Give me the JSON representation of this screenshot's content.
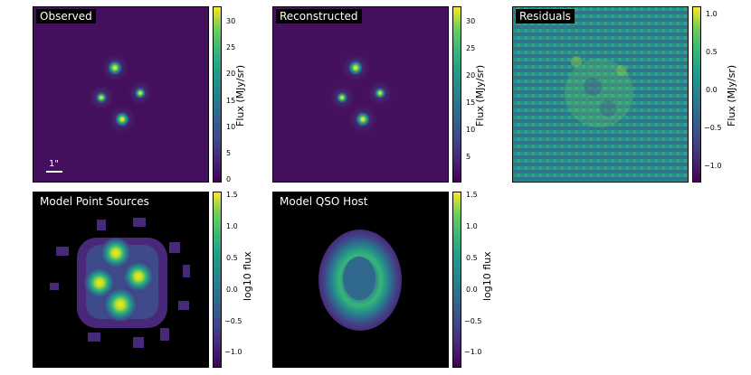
{
  "panels": [
    {
      "title": "Observed",
      "cbar_label": "Flux (MJy/sr)",
      "ticks": [
        "30",
        "25",
        "20",
        "15",
        "10",
        "5",
        "0"
      ],
      "scale_text": "1\""
    },
    {
      "title": "Reconstructed",
      "cbar_label": "Flux (MJy/sr)",
      "ticks": [
        "30",
        "25",
        "20",
        "15",
        "10",
        "5"
      ]
    },
    {
      "title": "Residuals",
      "cbar_label": "Flux (MJy/sr)",
      "ticks": [
        "1.0",
        "0.5",
        "0.0",
        "−0.5",
        "−1.0"
      ]
    },
    {
      "title": "Model Point Sources",
      "cbar_label": "log10 flux",
      "ticks": [
        "1.5",
        "1.0",
        "0.5",
        "0.0",
        "−0.5",
        "−1.0"
      ]
    },
    {
      "title": "Model QSO Host",
      "cbar_label": "log10 flux",
      "ticks": [
        "1.5",
        "1.0",
        "0.5",
        "0.0",
        "−0.5",
        "−1.0"
      ]
    }
  ],
  "colors": {
    "viridis_low": "#440154",
    "viridis_mid": "#21918c",
    "viridis_high": "#fde725",
    "background": "#ffffff"
  }
}
